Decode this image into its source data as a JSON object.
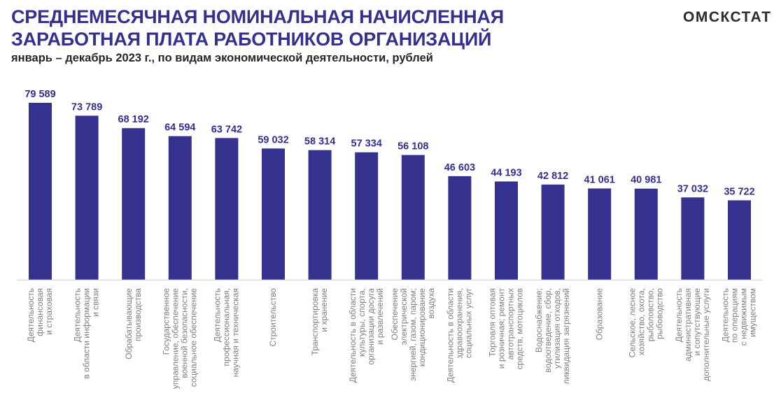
{
  "header": {
    "title_line1": "СРЕДНЕМЕСЯЧНАЯ НОМИНАЛЬНАЯ НАЧИСЛЕННАЯ",
    "title_line2": "ЗАРАБОТНАЯ ПЛАТА РАБОТНИКОВ ОРГАНИЗАЦИЙ",
    "subtitle": "январь – декабрь 2023 г., по видам экономической деятельности, рублей",
    "brand": "ОМСКСТАТ"
  },
  "colors": {
    "bar": "#35318f",
    "title": "#33308e",
    "axis": "#d9d9d9",
    "category_text": "#7f7f7f"
  },
  "chart_data": {
    "type": "bar",
    "title": "СРЕДНЕМЕСЯЧНАЯ НОМИНАЛЬНАЯ НАЧИСЛЕННАЯ ЗАРАБОТНАЯ ПЛАТА РАБОТНИКОВ ОРГАНИЗАЦИЙ",
    "subtitle": "январь – декабрь 2023 г., по видам экономической деятельности, рублей",
    "xlabel": "",
    "ylabel": "",
    "ylim": [
      0,
      125800
    ],
    "grid": false,
    "legend": "none",
    "categories": [
      [
        "Деятельность",
        "финансовая",
        "и страховая"
      ],
      [
        "Деятельность",
        "в области информации",
        "и связи"
      ],
      [
        "Обрабатывающие",
        "производства"
      ],
      [
        "Государственное",
        "управление, обеспечение",
        "военной безопасности,",
        "социальное обеспечение"
      ],
      [
        "Деятельность",
        "профессиональная,",
        "научная и техническая"
      ],
      [
        "Строительство"
      ],
      [
        "Транспортировка",
        "и хранение"
      ],
      [
        "Деятельность в области",
        "культуры, спорта,",
        "организации досуга",
        "и развлечений"
      ],
      [
        "Обеспечение",
        "электрической",
        "энергией, газом, паром;",
        "кондиционирование",
        "воздуха"
      ],
      [
        "Деятельность в области",
        "здравоохранения,",
        "социальных  услуг"
      ],
      [
        "Торговля оптовая",
        "и розничная; ремонт",
        "автотранспортных",
        "средств, мотоциклов"
      ],
      [
        "Водоснабжение;",
        "водоотведение, сбор,",
        "утилизация отходов,",
        "ликвидация загрязнений"
      ],
      [
        "Образование"
      ],
      [
        "Сельское, лесное",
        "хозяйство, охота,",
        "рыболовство,",
        "рыбоводство"
      ],
      [
        "Деятельность",
        "административная",
        "и сопутствующие",
        "дополнительные услуги"
      ],
      [
        "Деятельность",
        "по операциям",
        "с недвижимым",
        "имуществом"
      ]
    ],
    "values": [
      79589,
      73789,
      68192,
      64594,
      63742,
      59032,
      58314,
      57334,
      56108,
      46603,
      44193,
      42812,
      41061,
      40981,
      37032,
      35722
    ],
    "value_labels": [
      "79 589",
      "73 789",
      "68 192",
      "64 594",
      "63 742",
      "59 032",
      "58 314",
      "57 334",
      "56 108",
      "46 603",
      "44 193",
      "42 812",
      "41 061",
      "40 981",
      "37 032",
      "35 722"
    ]
  }
}
